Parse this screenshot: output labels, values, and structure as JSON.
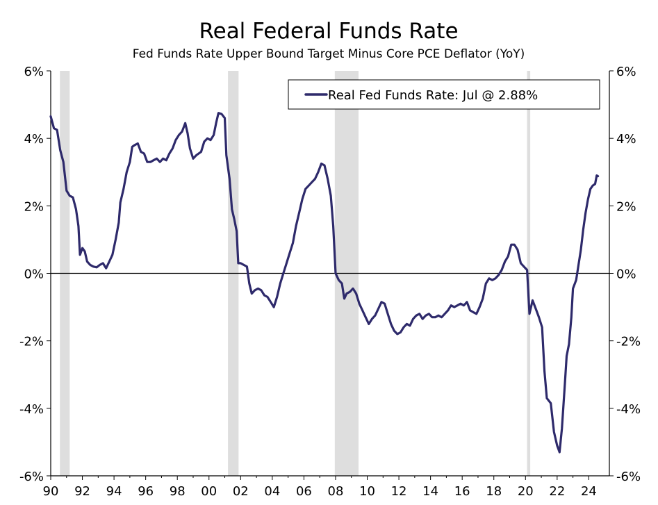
{
  "chart_data": {
    "type": "line",
    "title": "Real Federal Funds Rate",
    "subtitle": "Fed Funds Rate Upper Bound Target Minus Core PCE Deflator (YoY)",
    "xlabel": "",
    "ylabel": "",
    "xlim": [
      1990,
      2025.3
    ],
    "ylim": [
      -6,
      6
    ],
    "x_tick_values": [
      1990,
      1992,
      1994,
      1996,
      1998,
      2000,
      2002,
      2004,
      2006,
      2008,
      2010,
      2012,
      2014,
      2016,
      2018,
      2020,
      2022,
      2024
    ],
    "x_tick_labels": [
      "90",
      "92",
      "94",
      "96",
      "98",
      "00",
      "02",
      "04",
      "06",
      "08",
      "10",
      "12",
      "14",
      "16",
      "18",
      "20",
      "22",
      "24"
    ],
    "y_tick_values": [
      6,
      4,
      2,
      0,
      -2,
      -4,
      -6
    ],
    "y_tick_labels": [
      "6%",
      "4%",
      "2%",
      "0%",
      "-2%",
      "-4%",
      "-6%"
    ],
    "grid": false,
    "zero_line": true,
    "legend_position": "top-right",
    "recessions": [
      [
        1990.58,
        1991.2
      ],
      [
        2001.2,
        2001.87
      ],
      [
        2007.95,
        2009.45
      ],
      [
        2020.1,
        2020.3
      ]
    ],
    "series": [
      {
        "name": "Real Fed Funds Rate: Jul @ 2.88%",
        "color": "#2e2a6b",
        "points": [
          [
            1990.0,
            4.65
          ],
          [
            1990.2,
            4.3
          ],
          [
            1990.4,
            4.25
          ],
          [
            1990.6,
            3.65
          ],
          [
            1990.8,
            3.3
          ],
          [
            1991.0,
            2.45
          ],
          [
            1991.2,
            2.3
          ],
          [
            1991.4,
            2.25
          ],
          [
            1991.6,
            1.9
          ],
          [
            1991.75,
            1.4
          ],
          [
            1991.85,
            0.55
          ],
          [
            1992.0,
            0.75
          ],
          [
            1992.15,
            0.65
          ],
          [
            1992.3,
            0.35
          ],
          [
            1992.5,
            0.25
          ],
          [
            1992.7,
            0.2
          ],
          [
            1992.9,
            0.18
          ],
          [
            1993.1,
            0.25
          ],
          [
            1993.3,
            0.3
          ],
          [
            1993.5,
            0.15
          ],
          [
            1993.7,
            0.35
          ],
          [
            1993.9,
            0.55
          ],
          [
            1994.1,
            1.0
          ],
          [
            1994.3,
            1.5
          ],
          [
            1994.4,
            2.1
          ],
          [
            1994.6,
            2.5
          ],
          [
            1994.8,
            3.0
          ],
          [
            1995.0,
            3.3
          ],
          [
            1995.15,
            3.75
          ],
          [
            1995.3,
            3.8
          ],
          [
            1995.5,
            3.85
          ],
          [
            1995.7,
            3.6
          ],
          [
            1995.9,
            3.55
          ],
          [
            1996.1,
            3.3
          ],
          [
            1996.3,
            3.3
          ],
          [
            1996.5,
            3.35
          ],
          [
            1996.7,
            3.4
          ],
          [
            1996.9,
            3.3
          ],
          [
            1997.1,
            3.4
          ],
          [
            1997.3,
            3.35
          ],
          [
            1997.5,
            3.55
          ],
          [
            1997.7,
            3.7
          ],
          [
            1997.9,
            3.95
          ],
          [
            1998.1,
            4.1
          ],
          [
            1998.3,
            4.2
          ],
          [
            1998.5,
            4.45
          ],
          [
            1998.65,
            4.15
          ],
          [
            1998.8,
            3.7
          ],
          [
            1999.0,
            3.4
          ],
          [
            1999.2,
            3.5
          ],
          [
            1999.5,
            3.6
          ],
          [
            1999.7,
            3.9
          ],
          [
            1999.9,
            4.0
          ],
          [
            2000.1,
            3.95
          ],
          [
            2000.3,
            4.1
          ],
          [
            2000.45,
            4.45
          ],
          [
            2000.6,
            4.75
          ],
          [
            2000.8,
            4.72
          ],
          [
            2001.0,
            4.6
          ],
          [
            2001.1,
            3.5
          ],
          [
            2001.3,
            2.8
          ],
          [
            2001.45,
            1.9
          ],
          [
            2001.6,
            1.6
          ],
          [
            2001.75,
            1.25
          ],
          [
            2001.85,
            0.3
          ],
          [
            2002.0,
            0.3
          ],
          [
            2002.2,
            0.25
          ],
          [
            2002.4,
            0.2
          ],
          [
            2002.55,
            -0.3
          ],
          [
            2002.7,
            -0.6
          ],
          [
            2002.9,
            -0.5
          ],
          [
            2003.1,
            -0.45
          ],
          [
            2003.3,
            -0.5
          ],
          [
            2003.5,
            -0.65
          ],
          [
            2003.7,
            -0.7
          ],
          [
            2003.9,
            -0.85
          ],
          [
            2004.1,
            -1.0
          ],
          [
            2004.3,
            -0.7
          ],
          [
            2004.5,
            -0.3
          ],
          [
            2004.7,
            0.0
          ],
          [
            2004.9,
            0.3
          ],
          [
            2005.1,
            0.6
          ],
          [
            2005.3,
            0.9
          ],
          [
            2005.5,
            1.4
          ],
          [
            2005.7,
            1.8
          ],
          [
            2005.9,
            2.2
          ],
          [
            2006.1,
            2.5
          ],
          [
            2006.3,
            2.6
          ],
          [
            2006.5,
            2.7
          ],
          [
            2006.7,
            2.8
          ],
          [
            2006.9,
            3.0
          ],
          [
            2007.1,
            3.25
          ],
          [
            2007.3,
            3.2
          ],
          [
            2007.5,
            2.8
          ],
          [
            2007.7,
            2.3
          ],
          [
            2007.85,
            1.4
          ],
          [
            2008.0,
            0.0
          ],
          [
            2008.2,
            -0.2
          ],
          [
            2008.4,
            -0.3
          ],
          [
            2008.55,
            -0.75
          ],
          [
            2008.7,
            -0.6
          ],
          [
            2008.9,
            -0.55
          ],
          [
            2009.1,
            -0.45
          ],
          [
            2009.3,
            -0.6
          ],
          [
            2009.5,
            -0.9
          ],
          [
            2009.7,
            -1.1
          ],
          [
            2009.9,
            -1.3
          ],
          [
            2010.1,
            -1.5
          ],
          [
            2010.3,
            -1.35
          ],
          [
            2010.5,
            -1.25
          ],
          [
            2010.7,
            -1.05
          ],
          [
            2010.9,
            -0.85
          ],
          [
            2011.1,
            -0.9
          ],
          [
            2011.3,
            -1.2
          ],
          [
            2011.5,
            -1.5
          ],
          [
            2011.7,
            -1.7
          ],
          [
            2011.9,
            -1.8
          ],
          [
            2012.1,
            -1.75
          ],
          [
            2012.3,
            -1.6
          ],
          [
            2012.5,
            -1.5
          ],
          [
            2012.7,
            -1.55
          ],
          [
            2012.9,
            -1.35
          ],
          [
            2013.1,
            -1.25
          ],
          [
            2013.3,
            -1.2
          ],
          [
            2013.5,
            -1.35
          ],
          [
            2013.7,
            -1.25
          ],
          [
            2013.9,
            -1.2
          ],
          [
            2014.1,
            -1.3
          ],
          [
            2014.3,
            -1.3
          ],
          [
            2014.5,
            -1.25
          ],
          [
            2014.7,
            -1.3
          ],
          [
            2014.9,
            -1.2
          ],
          [
            2015.1,
            -1.1
          ],
          [
            2015.3,
            -0.95
          ],
          [
            2015.5,
            -1.0
          ],
          [
            2015.7,
            -0.95
          ],
          [
            2015.9,
            -0.9
          ],
          [
            2016.1,
            -0.95
          ],
          [
            2016.3,
            -0.85
          ],
          [
            2016.5,
            -1.1
          ],
          [
            2016.7,
            -1.15
          ],
          [
            2016.9,
            -1.2
          ],
          [
            2017.1,
            -1.0
          ],
          [
            2017.3,
            -0.75
          ],
          [
            2017.5,
            -0.3
          ],
          [
            2017.7,
            -0.15
          ],
          [
            2017.9,
            -0.2
          ],
          [
            2018.1,
            -0.15
          ],
          [
            2018.3,
            -0.05
          ],
          [
            2018.5,
            0.1
          ],
          [
            2018.7,
            0.35
          ],
          [
            2018.9,
            0.5
          ],
          [
            2019.1,
            0.85
          ],
          [
            2019.3,
            0.85
          ],
          [
            2019.5,
            0.7
          ],
          [
            2019.7,
            0.3
          ],
          [
            2019.9,
            0.2
          ],
          [
            2020.1,
            0.1
          ],
          [
            2020.25,
            -1.2
          ],
          [
            2020.45,
            -0.8
          ],
          [
            2020.65,
            -1.05
          ],
          [
            2020.85,
            -1.3
          ],
          [
            2021.05,
            -1.6
          ],
          [
            2021.2,
            -2.9
          ],
          [
            2021.35,
            -3.7
          ],
          [
            2021.6,
            -3.85
          ],
          [
            2021.8,
            -4.7
          ],
          [
            2022.0,
            -5.1
          ],
          [
            2022.15,
            -5.3
          ],
          [
            2022.3,
            -4.6
          ],
          [
            2022.5,
            -3.2
          ],
          [
            2022.6,
            -2.45
          ],
          [
            2022.75,
            -2.1
          ],
          [
            2022.9,
            -1.3
          ],
          [
            2023.0,
            -0.45
          ],
          [
            2023.2,
            -0.2
          ],
          [
            2023.35,
            0.25
          ],
          [
            2023.5,
            0.7
          ],
          [
            2023.65,
            1.3
          ],
          [
            2023.8,
            1.8
          ],
          [
            2023.95,
            2.2
          ],
          [
            2024.1,
            2.5
          ],
          [
            2024.25,
            2.6
          ],
          [
            2024.4,
            2.65
          ],
          [
            2024.5,
            2.9
          ],
          [
            2024.58,
            2.88
          ]
        ]
      }
    ]
  }
}
